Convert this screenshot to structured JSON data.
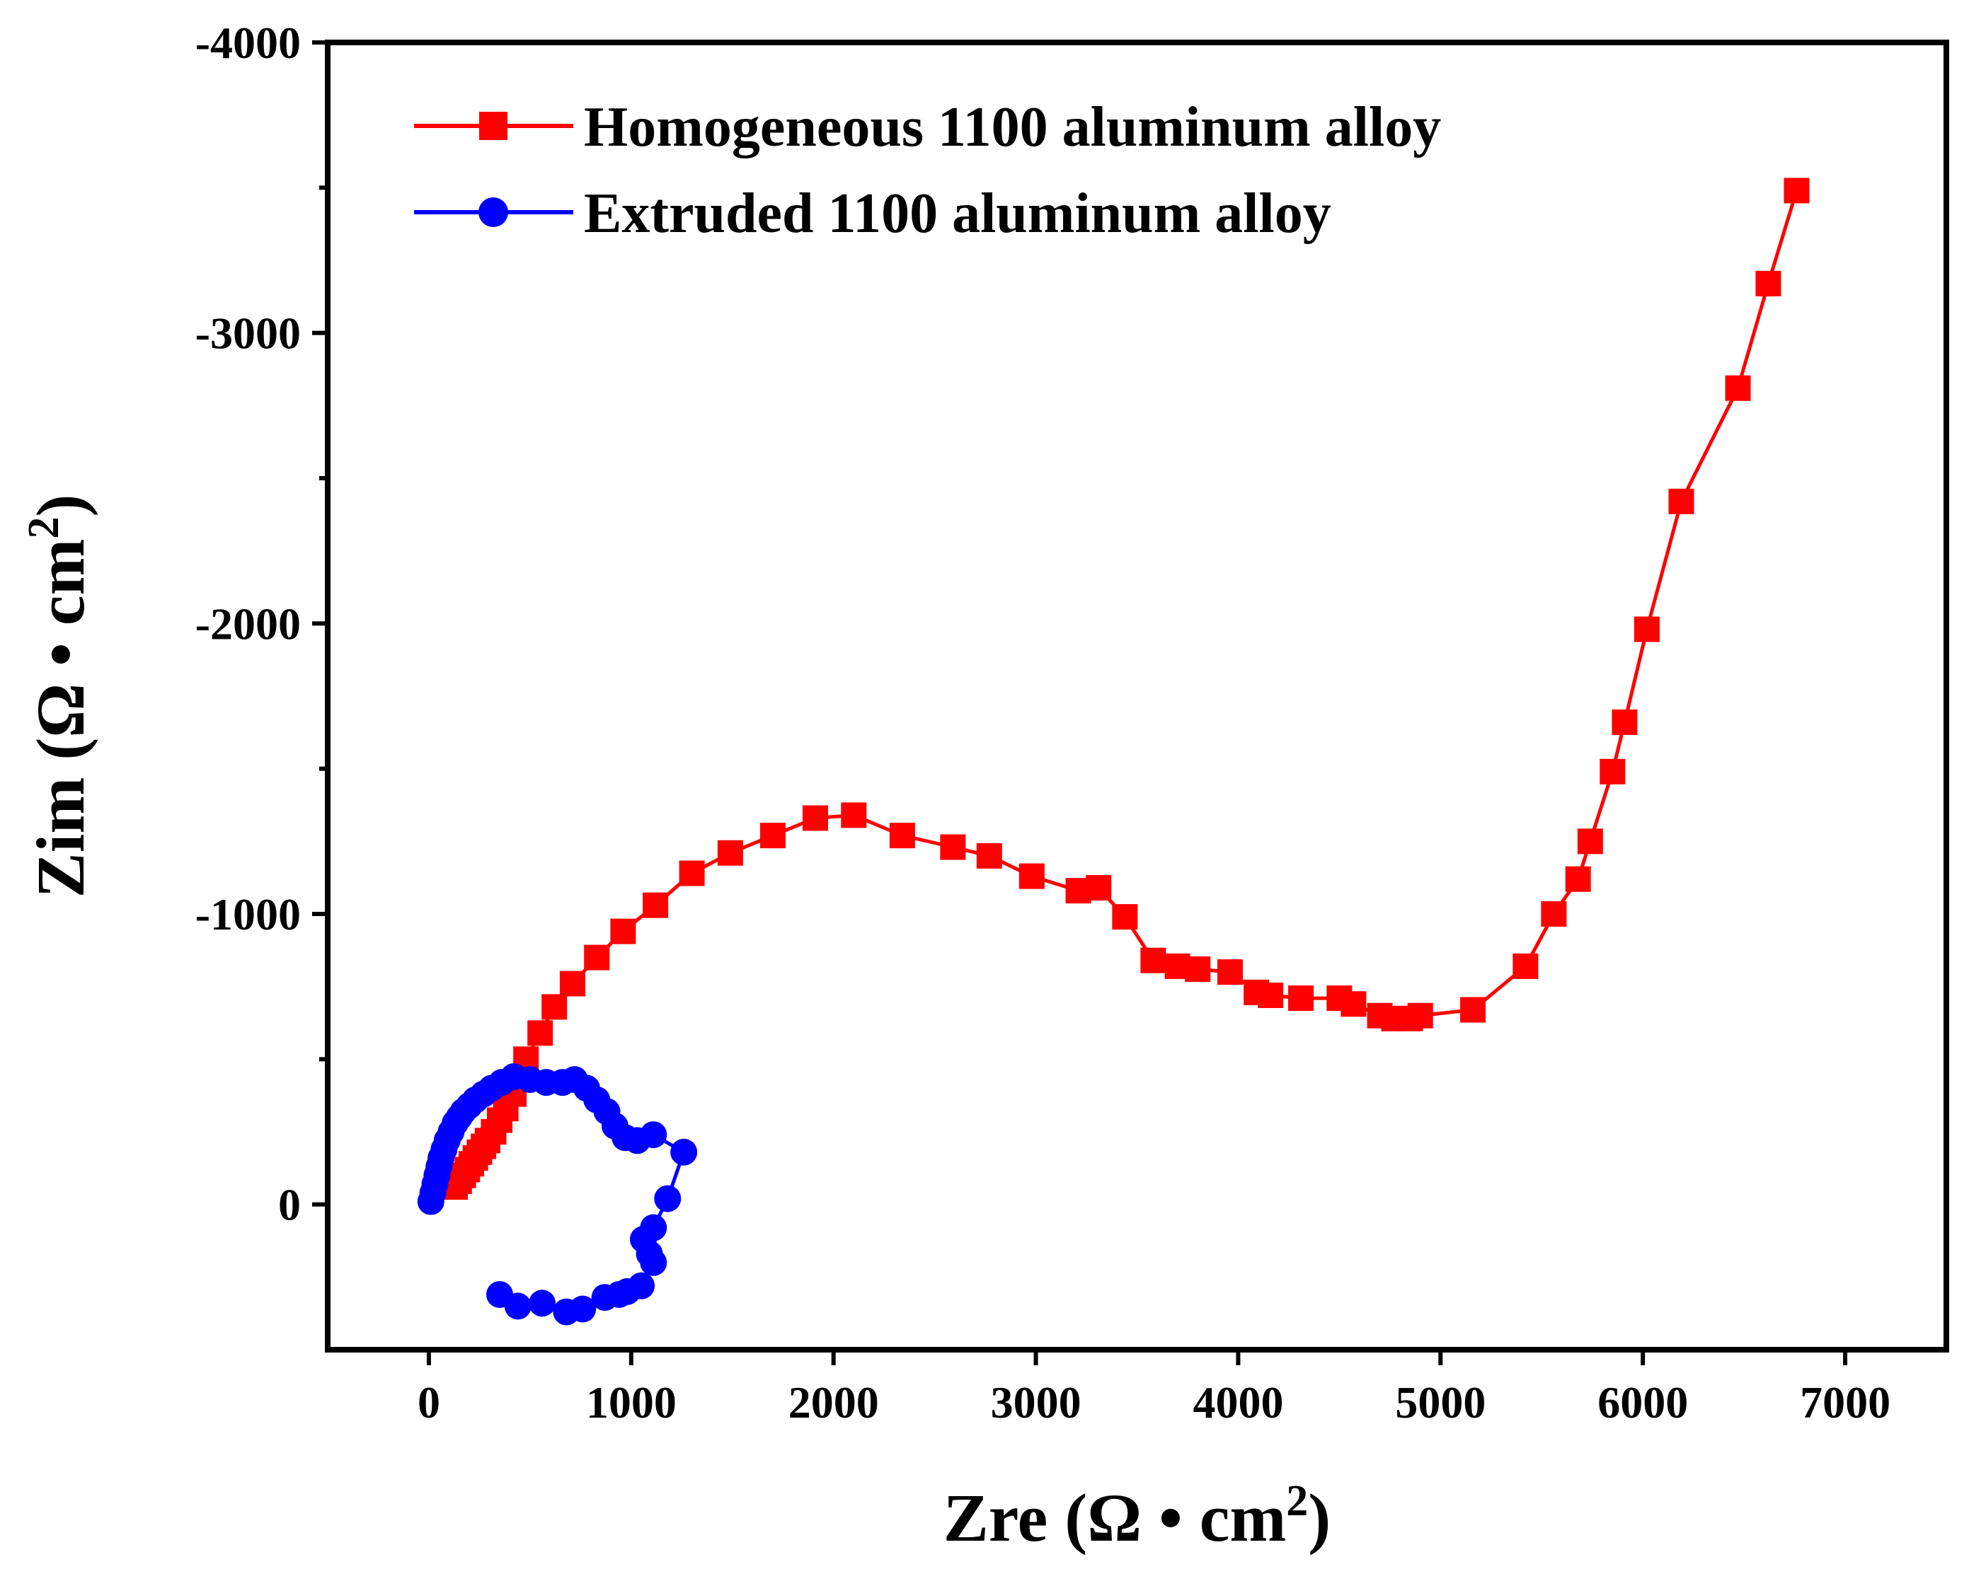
{
  "chart_data": {
    "type": "line",
    "title": "",
    "xlabel": "Zre (Ω • cm²)",
    "ylabel": "Zim (Ω • cm²)",
    "xlabel_parts": [
      "Zre (Ω • cm",
      "2",
      ")"
    ],
    "ylabel_parts": [
      "Zim (Ω • cm",
      "2",
      ")"
    ],
    "xlim": [
      -500,
      7500
    ],
    "ylim": [
      500,
      -4000
    ],
    "x_ticks": [
      0,
      1000,
      2000,
      3000,
      4000,
      5000,
      6000,
      7000
    ],
    "x_tick_labels": [
      "0",
      "1000",
      "2000",
      "3000",
      "4000",
      "5000",
      "6000",
      "7000"
    ],
    "y_ticks": [
      0,
      -1000,
      -2000,
      -3000,
      -4000
    ],
    "y_tick_labels": [
      "0",
      "-1000",
      "-2000",
      "-3000",
      "-4000"
    ],
    "y_minor_ticks": [
      -500,
      -1500,
      -2500,
      -3500
    ],
    "grid": false,
    "legend_position": "top-left",
    "series": [
      {
        "name": "Homogeneous 1100 aluminum alloy",
        "color": "#ff0000",
        "marker": "square",
        "x": [
          130,
          150,
          170,
          190,
          210,
          230,
          250,
          270,
          290,
          320,
          350,
          380,
          420,
          480,
          550,
          620,
          710,
          830,
          960,
          1120,
          1300,
          1490,
          1700,
          1910,
          2100,
          2340,
          2590,
          2770,
          2980,
          3210,
          3310,
          3440,
          3580,
          3700,
          3800,
          3960,
          4090,
          4160,
          4310,
          4500,
          4570,
          4700,
          4770,
          4850,
          4900,
          5160,
          5420,
          5560,
          5680,
          5740,
          5850,
          5910,
          6020,
          6190,
          6470,
          6620,
          6760
        ],
        "y": [
          -60,
          -80,
          -100,
          -120,
          -140,
          -160,
          -180,
          -200,
          -220,
          -250,
          -290,
          -330,
          -380,
          -500,
          -590,
          -680,
          -760,
          -850,
          -940,
          -1030,
          -1140,
          -1210,
          -1270,
          -1330,
          -1340,
          -1270,
          -1230,
          -1200,
          -1130,
          -1080,
          -1090,
          -990,
          -840,
          -820,
          -810,
          -800,
          -730,
          -720,
          -710,
          -710,
          -690,
          -650,
          -640,
          -640,
          -650,
          -670,
          -820,
          -1000,
          -1120,
          -1250,
          -1490,
          -1660,
          -1980,
          -2420,
          -2810,
          -3170,
          -3490
        ]
      },
      {
        "name": "Extruded 1100 aluminum alloy",
        "color": "#0000ff",
        "marker": "circle",
        "x": [
          10,
          20,
          30,
          40,
          50,
          60,
          75,
          90,
          110,
          130,
          150,
          170,
          200,
          230,
          270,
          310,
          360,
          420,
          500,
          580,
          660,
          720,
          780,
          830,
          880,
          920,
          970,
          1030,
          1110,
          1260,
          1180,
          1110,
          1060,
          1090,
          1110,
          1050,
          980,
          940,
          870,
          760,
          680,
          560,
          440,
          350
        ],
        "y": [
          -10,
          -40,
          -70,
          -100,
          -130,
          -160,
          -190,
          -220,
          -250,
          -280,
          -300,
          -320,
          -340,
          -360,
          -380,
          -400,
          -420,
          -440,
          -430,
          -420,
          -420,
          -430,
          -400,
          -360,
          -320,
          -270,
          -230,
          -220,
          -240,
          -180,
          -20,
          80,
          120,
          170,
          200,
          280,
          300,
          310,
          320,
          360,
          370,
          340,
          350,
          310
        ]
      }
    ]
  }
}
